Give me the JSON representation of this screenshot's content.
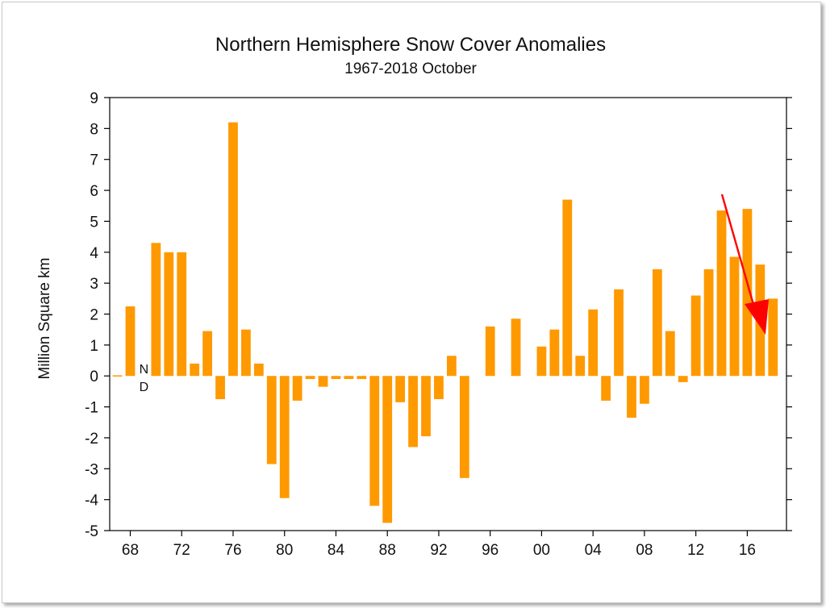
{
  "chart_data": {
    "type": "bar",
    "title": "Northern Hemisphere Snow Cover Anomalies",
    "subtitle": "1967-2018 October",
    "ylabel": "Million Square km",
    "xlabel": "",
    "ylim": [
      -5,
      9
    ],
    "yticks": [
      "-5",
      "-4",
      "-3",
      "-2",
      "-1",
      "0",
      "1",
      "2",
      "3",
      "4",
      "5",
      "6",
      "7",
      "8",
      "9"
    ],
    "xticks": [
      {
        "year": 1968,
        "label": "68"
      },
      {
        "year": 1972,
        "label": "72"
      },
      {
        "year": 1976,
        "label": "76"
      },
      {
        "year": 1980,
        "label": "80"
      },
      {
        "year": 1984,
        "label": "84"
      },
      {
        "year": 1988,
        "label": "88"
      },
      {
        "year": 1992,
        "label": "92"
      },
      {
        "year": 1996,
        "label": "96"
      },
      {
        "year": 2000,
        "label": "00"
      },
      {
        "year": 2004,
        "label": "04"
      },
      {
        "year": 2008,
        "label": "08"
      },
      {
        "year": 2012,
        "label": "12"
      },
      {
        "year": 2016,
        "label": "16"
      }
    ],
    "annotation": {
      "top": "N",
      "bottom": "D",
      "year": 1969
    },
    "bar_color": "#ff9900",
    "arrow_color": "#ff0000",
    "years": [
      1967,
      1968,
      1969,
      1970,
      1971,
      1972,
      1973,
      1974,
      1975,
      1976,
      1977,
      1978,
      1979,
      1980,
      1981,
      1982,
      1983,
      1984,
      1985,
      1986,
      1987,
      1988,
      1989,
      1990,
      1991,
      1992,
      1993,
      1994,
      1995,
      1996,
      1997,
      1998,
      1999,
      2000,
      2001,
      2002,
      2003,
      2004,
      2005,
      2006,
      2007,
      2008,
      2009,
      2010,
      2011,
      2012,
      2013,
      2014,
      2015,
      2016,
      2017,
      2018
    ],
    "values": [
      0.02,
      2.25,
      null,
      4.3,
      4.0,
      4.0,
      0.4,
      1.45,
      -0.75,
      8.2,
      1.5,
      0.4,
      -2.85,
      -3.95,
      -0.8,
      -0.1,
      -0.35,
      -0.1,
      -0.1,
      -0.1,
      -4.2,
      -4.75,
      -0.85,
      -2.3,
      -1.95,
      -0.75,
      0.65,
      -3.3,
      0.0,
      1.6,
      0.0,
      1.85,
      0.0,
      0.95,
      1.5,
      5.7,
      0.65,
      2.15,
      -0.8,
      2.8,
      -1.35,
      -0.9,
      3.45,
      1.45,
      -0.2,
      2.6,
      3.45,
      5.35,
      3.85,
      5.4,
      3.6,
      2.5
    ]
  }
}
